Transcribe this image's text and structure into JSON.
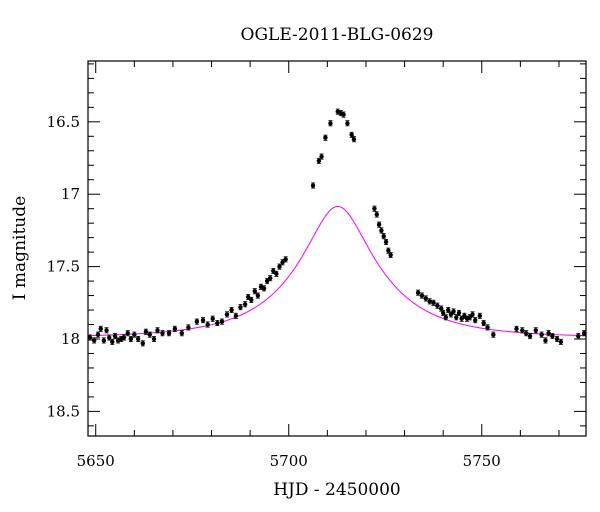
{
  "chart_data": {
    "type": "scatter",
    "title": "OGLE-2011-BLG-0629",
    "xlabel": "HJD - 2450000",
    "ylabel": "I magnitude",
    "xlim": [
      5648,
      5777
    ],
    "ylim": [
      18.67,
      16.08
    ],
    "y_inverted": true,
    "xticks": [
      5650,
      5700,
      5750
    ],
    "yticks": [
      16.5,
      17,
      17.5,
      18,
      18.5
    ],
    "ytick_labels": [
      "16.5",
      "17",
      "17.5",
      "18",
      "18.5"
    ],
    "grid": false,
    "model_color": "#ff00ff",
    "point_color": "#000000",
    "model_curve": {
      "t0": 5712.7,
      "tE": 22.5,
      "u0": 0.34,
      "baseline_mag": 17.99,
      "blend_fraction": 0.63
    },
    "series": [
      {
        "values": [
          [
            5648.5,
            17.99
          ],
          [
            5649.6,
            18.01
          ],
          [
            5650.6,
            17.97
          ],
          [
            5651.3,
            17.93
          ],
          [
            5652.1,
            18.01
          ],
          [
            5652.8,
            17.94
          ],
          [
            5653.5,
            17.99
          ],
          [
            5654.3,
            18.02
          ],
          [
            5655.0,
            17.98
          ],
          [
            5655.8,
            18.01
          ],
          [
            5656.6,
            18.0
          ],
          [
            5657.3,
            17.99
          ],
          [
            5658.3,
            17.96
          ],
          [
            5659.1,
            18.0
          ],
          [
            5660.0,
            17.97
          ],
          [
            5661.0,
            18.0
          ],
          [
            5662.2,
            18.03
          ],
          [
            5663.0,
            17.95
          ],
          [
            5664.0,
            17.97
          ],
          [
            5665.1,
            18.0
          ],
          [
            5666.0,
            17.94
          ],
          [
            5667.3,
            17.96
          ],
          [
            5669.0,
            17.96
          ],
          [
            5670.5,
            17.93
          ],
          [
            5672.3,
            17.96
          ],
          [
            5674.0,
            17.92
          ],
          [
            5676.2,
            17.88
          ],
          [
            5677.8,
            17.87
          ],
          [
            5679.0,
            17.9
          ],
          [
            5680.3,
            17.86
          ],
          [
            5681.5,
            17.89
          ],
          [
            5682.7,
            17.88
          ],
          [
            5684.0,
            17.83
          ],
          [
            5685.2,
            17.8
          ],
          [
            5686.3,
            17.84
          ],
          [
            5687.5,
            17.78
          ],
          [
            5688.7,
            17.76
          ],
          [
            5689.5,
            17.71
          ],
          [
            5690.3,
            17.73
          ],
          [
            5691.2,
            17.67
          ],
          [
            5692.0,
            17.7
          ],
          [
            5692.8,
            17.64
          ],
          [
            5693.6,
            17.65
          ],
          [
            5694.4,
            17.6
          ],
          [
            5695.2,
            17.58
          ],
          [
            5696.0,
            17.53
          ],
          [
            5696.8,
            17.55
          ],
          [
            5697.6,
            17.5
          ],
          [
            5698.4,
            17.47
          ],
          [
            5699.2,
            17.45
          ],
          [
            5706.3,
            16.94
          ],
          [
            5707.8,
            16.77
          ],
          [
            5708.5,
            16.74
          ],
          [
            5709.5,
            16.61
          ],
          [
            5710.8,
            16.51
          ],
          [
            5712.7,
            16.43
          ],
          [
            5713.5,
            16.44
          ],
          [
            5714.2,
            16.45
          ],
          [
            5715.2,
            16.51
          ],
          [
            5716.3,
            16.59
          ],
          [
            5716.9,
            16.62
          ],
          [
            5722.2,
            17.1
          ],
          [
            5722.8,
            17.14
          ],
          [
            5723.4,
            17.21
          ],
          [
            5724.0,
            17.25
          ],
          [
            5724.6,
            17.29
          ],
          [
            5725.2,
            17.33
          ],
          [
            5725.8,
            17.39
          ],
          [
            5726.4,
            17.42
          ],
          [
            5733.5,
            17.68
          ],
          [
            5734.5,
            17.7
          ],
          [
            5735.5,
            17.72
          ],
          [
            5736.5,
            17.74
          ],
          [
            5737.5,
            17.75
          ],
          [
            5738.5,
            17.77
          ],
          [
            5739.5,
            17.79
          ],
          [
            5740.0,
            17.82
          ],
          [
            5740.7,
            17.85
          ],
          [
            5741.3,
            17.8
          ],
          [
            5742.0,
            17.83
          ],
          [
            5742.7,
            17.81
          ],
          [
            5743.4,
            17.85
          ],
          [
            5744.1,
            17.82
          ],
          [
            5744.8,
            17.86
          ],
          [
            5745.5,
            17.84
          ],
          [
            5746.2,
            17.86
          ],
          [
            5746.9,
            17.85
          ],
          [
            5747.6,
            17.83
          ],
          [
            5748.3,
            17.87
          ],
          [
            5749.5,
            17.84
          ],
          [
            5750.5,
            17.89
          ],
          [
            5751.5,
            17.92
          ],
          [
            5753.0,
            17.97
          ],
          [
            5759.0,
            17.93
          ],
          [
            5760.5,
            17.94
          ],
          [
            5761.5,
            17.96
          ],
          [
            5762.5,
            17.98
          ],
          [
            5764.0,
            17.94
          ],
          [
            5765.5,
            17.97
          ],
          [
            5766.5,
            18.01
          ],
          [
            5767.3,
            17.96
          ],
          [
            5768.3,
            17.98
          ],
          [
            5769.5,
            18.0
          ],
          [
            5770.5,
            18.02
          ],
          [
            5775.0,
            17.98
          ],
          [
            5776.5,
            17.96
          ]
        ]
      }
    ]
  }
}
